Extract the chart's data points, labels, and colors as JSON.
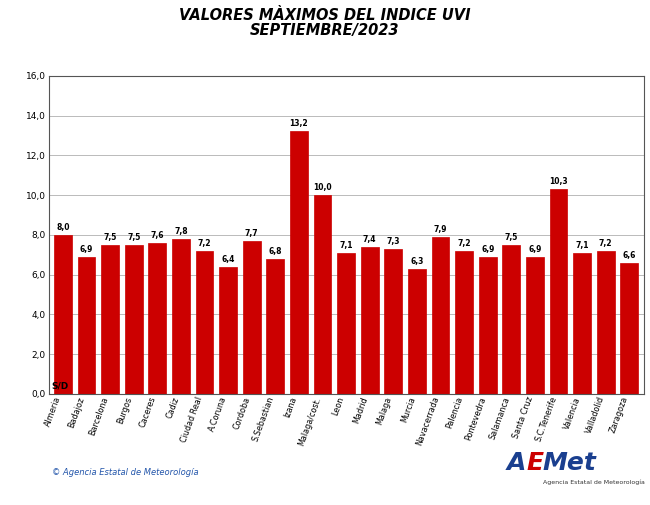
{
  "title_line1": "VALORES MÀXIMOS DEL INDICE UVI",
  "title_line2": "SEPTIEMBRE/2023",
  "categories": [
    "Almeria",
    "Badajoz",
    "Barcelona",
    "Burgos",
    "Caceres",
    "Cadiz",
    "Ciudad Real",
    "A.Coruna",
    "Cordoba",
    "S.Sebastian",
    "Izana",
    "Malaga/cost.",
    "Leon",
    "Madrid",
    "Malaga",
    "Murcia",
    "Navacerrada",
    "Palencia",
    "Pontevedra",
    "Salamanca",
    "Santa Cruz",
    "S.C.Tenerife",
    "Valencia",
    "Valladolid",
    "Zaragoza"
  ],
  "values": [
    8.0,
    6.9,
    7.5,
    7.5,
    7.6,
    7.8,
    7.2,
    6.4,
    7.7,
    6.8,
    13.2,
    10.0,
    7.1,
    7.4,
    7.3,
    6.3,
    7.9,
    7.2,
    6.9,
    7.5,
    6.9,
    10.3,
    7.1,
    7.2,
    6.6
  ],
  "bar_color": "#cc0000",
  "ylim": [
    0,
    16.0
  ],
  "yticks": [
    0.0,
    2.0,
    4.0,
    6.0,
    8.0,
    10.0,
    12.0,
    14.0,
    16.0
  ],
  "sd_label": "S/D",
  "copyright_text": "© Agencia Estatal de Meteorología",
  "background_color": "#ffffff",
  "grid_color": "#b0b0b0",
  "title_fontsize": 10.5,
  "value_fontsize": 5.5,
  "tick_fontsize": 5.8,
  "ytick_fontsize": 6.5,
  "sd_fontsize": 6.5,
  "copyright_fontsize": 6.0,
  "border_color": "#555555"
}
